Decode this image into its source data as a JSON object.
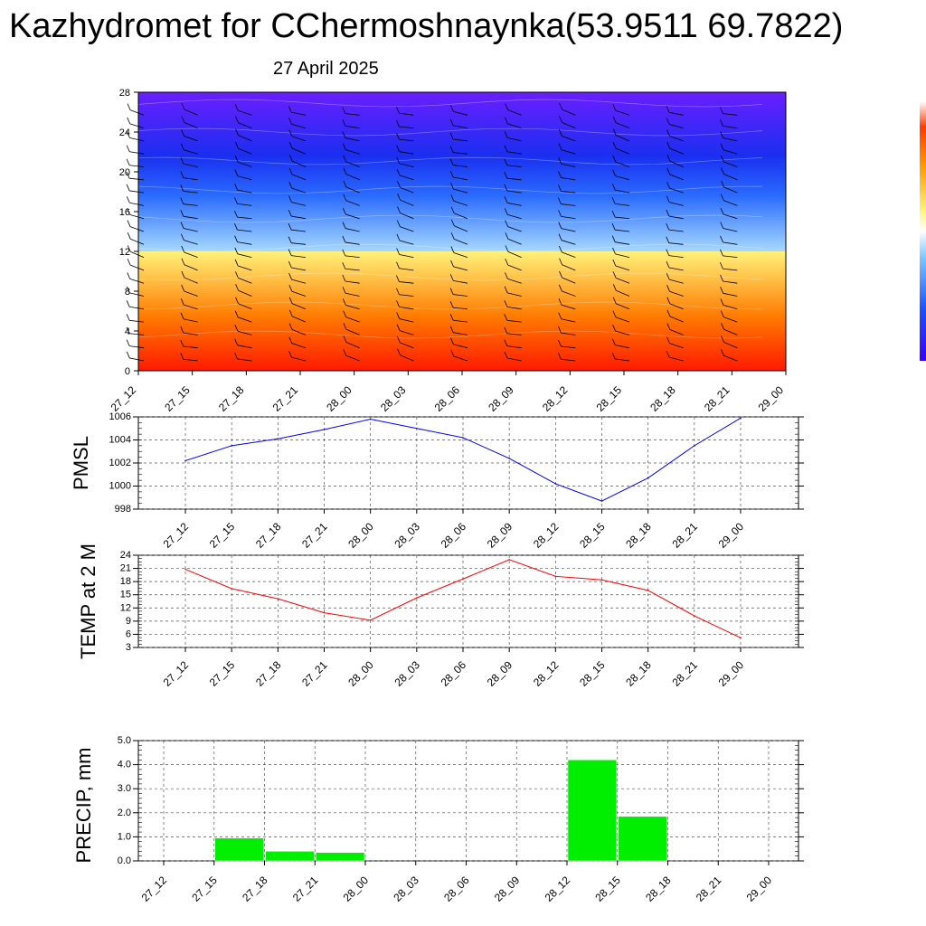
{
  "title": "Kazhydromet for CChermoshnaynka(53.9511 69.7822)",
  "subtitle": "27 April 2025",
  "chart_data": [
    {
      "type": "heatmap",
      "name": "cross-section",
      "x_ticks": [
        "27_12",
        "27_15",
        "27_18",
        "27_21",
        "28_00",
        "28_03",
        "28_06",
        "28_09",
        "28_12",
        "28_15",
        "28_18",
        "28_21",
        "29_00"
      ],
      "y_ticks": [
        0,
        4,
        8,
        12,
        16,
        20,
        24,
        28
      ],
      "ylim": [
        0,
        28
      ],
      "colors": {
        "warm_bottom": "#ff1a00",
        "warm_mid": "#ff7a00",
        "warm_top": "#fff27a",
        "cool_bottom": "#a6d8ff",
        "cool_mid": "#2a6bff",
        "cool_top": "#6a1eff"
      },
      "boundary_level": 12,
      "barbs": true
    },
    {
      "type": "line",
      "ylabel": "PMSL",
      "x": [
        "27_12",
        "27_15",
        "27_18",
        "27_21",
        "28_00",
        "28_03",
        "28_06",
        "28_09",
        "28_12",
        "28_15",
        "28_18",
        "28_21",
        "29_00"
      ],
      "values": [
        1002.2,
        1003.5,
        1004.1,
        1004.9,
        1005.8,
        1005.0,
        1004.2,
        1002.4,
        1000.2,
        998.7,
        1000.7,
        1003.5,
        1005.9
      ],
      "ylim": [
        998,
        1006
      ],
      "y_ticks": [
        998,
        1000,
        1002,
        1004,
        1006
      ],
      "color": "#0000ff",
      "grid": true
    },
    {
      "type": "line",
      "ylabel": "TEMP at 2 M",
      "x": [
        "27_12",
        "27_15",
        "27_18",
        "27_21",
        "28_00",
        "28_03",
        "28_06",
        "28_09",
        "28_12",
        "28_15",
        "28_18",
        "28_21",
        "29_00"
      ],
      "values": [
        20.8,
        16.4,
        14.1,
        10.9,
        9.2,
        14.3,
        18.6,
        23.0,
        19.2,
        18.4,
        16.0,
        10.2,
        5.2
      ],
      "ylim": [
        3,
        24
      ],
      "y_ticks": [
        3,
        6,
        9,
        12,
        15,
        18,
        21,
        24
      ],
      "color": "#ff0000",
      "grid": true
    },
    {
      "type": "bar",
      "ylabel": "PRECIP, mm",
      "categories": [
        "27_12",
        "27_15",
        "27_18",
        "27_21",
        "28_00",
        "28_03",
        "28_06",
        "28_09",
        "28_12",
        "28_15",
        "28_18",
        "28_21",
        "29_00"
      ],
      "values": [
        0,
        0.95,
        0.4,
        0.35,
        0,
        0,
        0,
        0,
        4.2,
        1.85,
        0,
        0,
        0
      ],
      "ylim": [
        0,
        5
      ],
      "y_ticks": [
        "0.0",
        "1.0",
        "2.0",
        "3.0",
        "4.0",
        "5.0"
      ],
      "color": "#00ee00",
      "grid": true
    }
  ]
}
